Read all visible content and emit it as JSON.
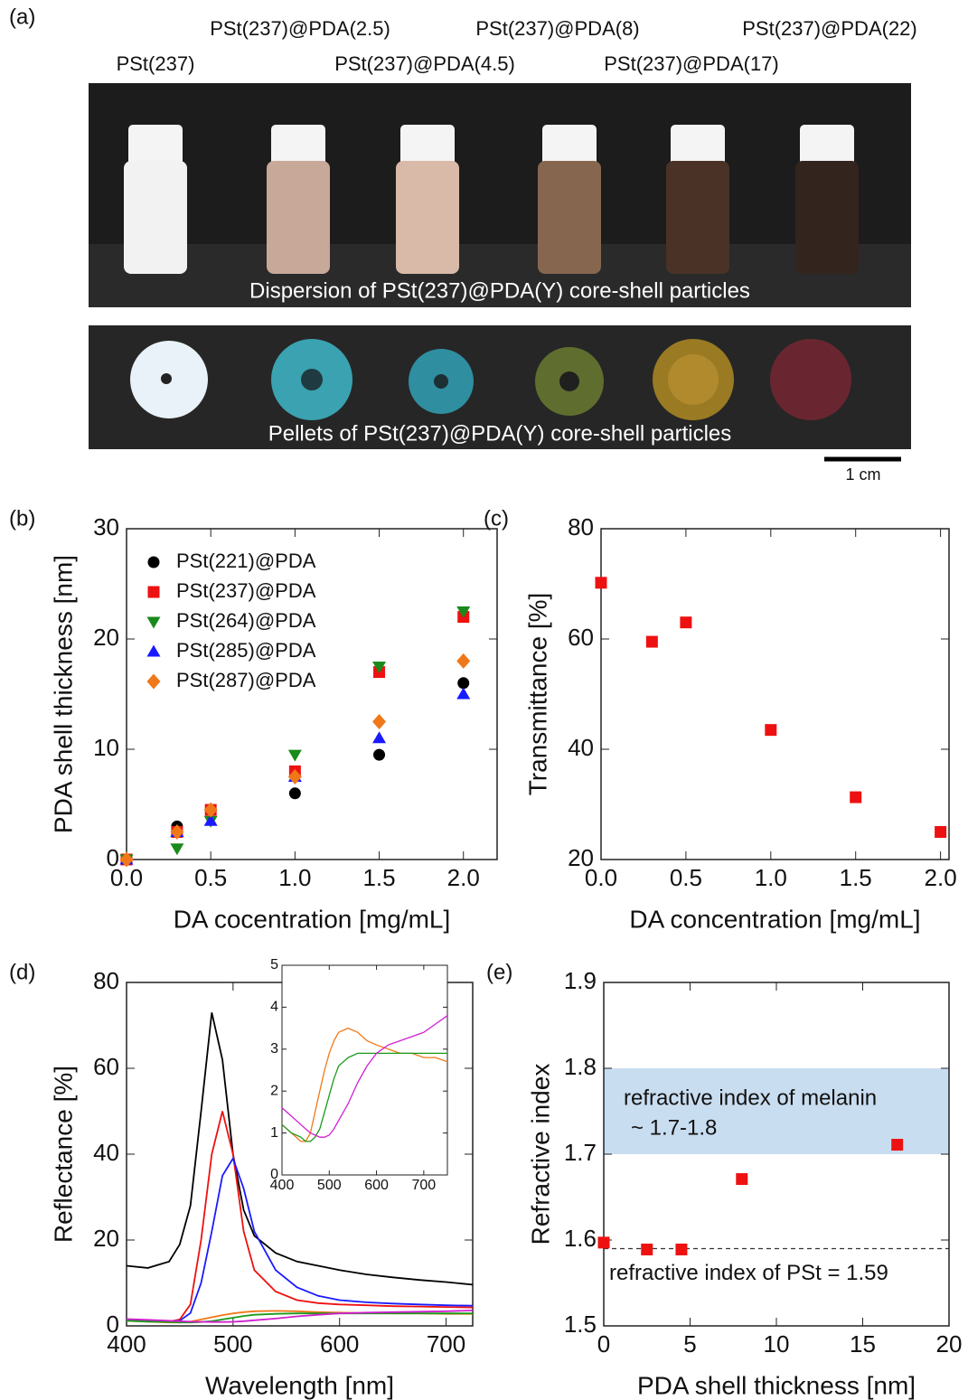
{
  "figure_a": {
    "panel": "(a)",
    "samples": [
      "PSt(237)",
      "PSt(237)@PDA(2.5)",
      "PSt(237)@PDA(4.5)",
      "PSt(237)@PDA(8)",
      "PSt(237)@PDA(17)",
      "PSt(237)@PDA(22)"
    ],
    "dispersion_caption": "Dispersion of PSt(237)@PDA(Y) core-shell particles",
    "pellet_caption": "Pellets of PSt(237)@PDA(Y) core-shell particles",
    "scale_bar": "1 cm"
  },
  "chart_data": [
    {
      "type": "scatter",
      "panel": "(b)",
      "xlabel": "DA cocentration [mg/mL]",
      "ylabel": "PDA shell thickness [nm]",
      "x": [
        0,
        0.3,
        0.5,
        1.0,
        1.5,
        2.0
      ],
      "xlim": [
        0,
        2.2
      ],
      "xticks": [
        {
          "value": 0,
          "label": "0.0"
        },
        0.5,
        {
          "value": 1,
          "label": "1.0"
        },
        1.5,
        {
          "value": 2,
          "label": "2.0"
        }
      ],
      "ylim": [
        0,
        30
      ],
      "yticks": [
        0,
        10,
        20,
        30
      ],
      "legend": "upper left",
      "series": [
        {
          "name": "PSt(221)@PDA",
          "color": "#000000",
          "marker": "circle",
          "values": [
            0,
            3.0,
            4.5,
            6.0,
            9.5,
            16.0
          ]
        },
        {
          "name": "PSt(237)@PDA",
          "color": "#ee1111",
          "marker": "square",
          "values": [
            0,
            2.5,
            4.5,
            8.0,
            17.0,
            22.0
          ]
        },
        {
          "name": "PSt(264)@PDA",
          "color": "#1a8a1a",
          "marker": "triangle-down",
          "values": [
            0,
            1.0,
            3.5,
            9.5,
            17.5,
            22.5
          ]
        },
        {
          "name": "PSt(285)@PDA",
          "color": "#1a1aff",
          "marker": "triangle-up",
          "values": [
            0,
            2.5,
            3.5,
            7.5,
            11.0,
            15.0
          ]
        },
        {
          "name": "PSt(287)@PDA",
          "color": "#f07818",
          "marker": "diamond",
          "values": [
            0,
            2.5,
            4.5,
            7.5,
            12.5,
            18.0
          ]
        }
      ]
    },
    {
      "type": "scatter",
      "panel": "(c)",
      "xlabel": "DA concentration [mg/mL]",
      "ylabel": "Transmittance [%]",
      "x": [
        0,
        0.3,
        0.5,
        1.0,
        1.5,
        2.0
      ],
      "xlim": [
        0,
        2.05
      ],
      "xticks": [
        {
          "value": 0,
          "label": "0.0"
        },
        0.5,
        {
          "value": 1,
          "label": "1.0"
        },
        1.5,
        {
          "value": 2,
          "label": "2.0"
        }
      ],
      "ylim": [
        20,
        80
      ],
      "yticks": [
        20,
        40,
        60,
        80
      ],
      "series": [
        {
          "color": "#ee1111",
          "marker": "square",
          "values": [
            70.2,
            59.5,
            63.0,
            43.5,
            31.3,
            25.0
          ]
        }
      ]
    },
    {
      "type": "line",
      "panel": "(d)",
      "xlabel": "Wavelength [nm]",
      "ylabel": "Reflectance [%]",
      "x": [
        400,
        420,
        440,
        450,
        460,
        470,
        480,
        490,
        500,
        510,
        520,
        540,
        560,
        580,
        600,
        625,
        650,
        675,
        700,
        725
      ],
      "xlim": [
        400,
        725
      ],
      "xticks": [
        400,
        500,
        600,
        700
      ],
      "ylim": [
        0,
        80
      ],
      "yticks": [
        0,
        20,
        40,
        60,
        80
      ],
      "series": [
        {
          "color": "#000000",
          "values": [
            14,
            13.5,
            15,
            19,
            28,
            50,
            73,
            62,
            40,
            27,
            21,
            17,
            15,
            14,
            13,
            12,
            11.3,
            10.7,
            10.2,
            9.6
          ]
        },
        {
          "color": "#ee1111",
          "values": [
            1.5,
            1.2,
            1.0,
            1.5,
            5,
            20,
            40,
            50,
            40,
            22,
            13,
            8,
            6,
            5.3,
            5,
            4.8,
            4.6,
            4.5,
            4.4,
            4.3
          ]
        },
        {
          "color": "#1a1aff",
          "values": [
            1.5,
            1.2,
            1.0,
            1.2,
            3,
            10,
            22,
            35,
            39,
            32,
            22,
            13,
            9,
            7,
            6,
            5.5,
            5.2,
            5,
            4.8,
            4.7
          ]
        },
        {
          "color": "#f07818",
          "values": [
            1.2,
            1.0,
            0.8,
            0.8,
            1.0,
            1.5,
            2.0,
            2.5,
            2.9,
            3.2,
            3.4,
            3.5,
            3.4,
            3.2,
            3.1,
            3.0,
            2.9,
            2.9,
            2.8,
            2.8
          ]
        },
        {
          "color": "#1a9a1a",
          "values": [
            1.2,
            1.0,
            0.9,
            0.8,
            0.8,
            0.9,
            1.1,
            1.5,
            1.9,
            2.3,
            2.6,
            2.8,
            2.9,
            2.9,
            2.9,
            2.9,
            2.9,
            2.9,
            2.9,
            2.9
          ]
        },
        {
          "color": "#d020d0",
          "values": [
            1.6,
            1.4,
            1.2,
            1.1,
            1.0,
            0.95,
            0.9,
            0.9,
            0.95,
            1.1,
            1.3,
            1.7,
            2.2,
            2.6,
            2.9,
            3.1,
            3.2,
            3.3,
            3.4,
            3.6
          ]
        }
      ]
    },
    {
      "type": "line",
      "x": [
        400,
        420,
        440,
        450,
        460,
        470,
        480,
        490,
        500,
        510,
        520,
        540,
        560,
        580,
        600,
        625,
        650,
        675,
        700,
        725,
        750
      ],
      "xlim": [
        400,
        750
      ],
      "xticks": [
        400,
        500,
        600,
        700
      ],
      "ylim": [
        0,
        5
      ],
      "yticks": [
        0,
        1,
        2,
        3,
        4,
        5
      ],
      "series": [
        {
          "color": "#f07818",
          "values": [
            1.2,
            1.0,
            0.8,
            0.8,
            1.0,
            1.5,
            2.0,
            2.5,
            2.9,
            3.2,
            3.4,
            3.5,
            3.4,
            3.2,
            3.1,
            3.0,
            2.9,
            2.9,
            2.8,
            2.8,
            2.7
          ]
        },
        {
          "color": "#1a9a1a",
          "values": [
            1.2,
            1.0,
            0.9,
            0.8,
            0.8,
            0.9,
            1.1,
            1.5,
            1.9,
            2.3,
            2.6,
            2.8,
            2.9,
            2.9,
            2.9,
            2.9,
            2.9,
            2.9,
            2.9,
            2.9,
            2.9
          ]
        },
        {
          "color": "#d020d0",
          "values": [
            1.6,
            1.4,
            1.2,
            1.1,
            1.0,
            0.95,
            0.9,
            0.9,
            0.95,
            1.1,
            1.3,
            1.7,
            2.2,
            2.6,
            2.9,
            3.1,
            3.2,
            3.3,
            3.4,
            3.6,
            3.8
          ]
        }
      ]
    },
    {
      "type": "scatter",
      "panel": "(e)",
      "xlabel": "PDA shell thickness [nm]",
      "ylabel": "Refractive index",
      "x": [
        0,
        2.5,
        4.5,
        8,
        17
      ],
      "xlim": [
        0,
        20
      ],
      "xticks": [
        0,
        5,
        10,
        15,
        20
      ],
      "ylim": [
        1.5,
        1.9
      ],
      "yticks": [
        1.5,
        1.6,
        1.7,
        1.8,
        1.9
      ],
      "bands": [
        {
          "range": [
            1.7,
            1.8
          ],
          "color": "#c9ddf0",
          "labels": [
            "refractive index of melanin",
            "~ 1.7-1.8"
          ]
        }
      ],
      "hlines": [
        {
          "value": 1.59,
          "label": "refractive index of PSt = 1.59"
        }
      ],
      "series": [
        {
          "color": "#ee1111",
          "marker": "square",
          "values": [
            1.597,
            1.589,
            1.589,
            1.671,
            1.711
          ]
        }
      ]
    }
  ]
}
